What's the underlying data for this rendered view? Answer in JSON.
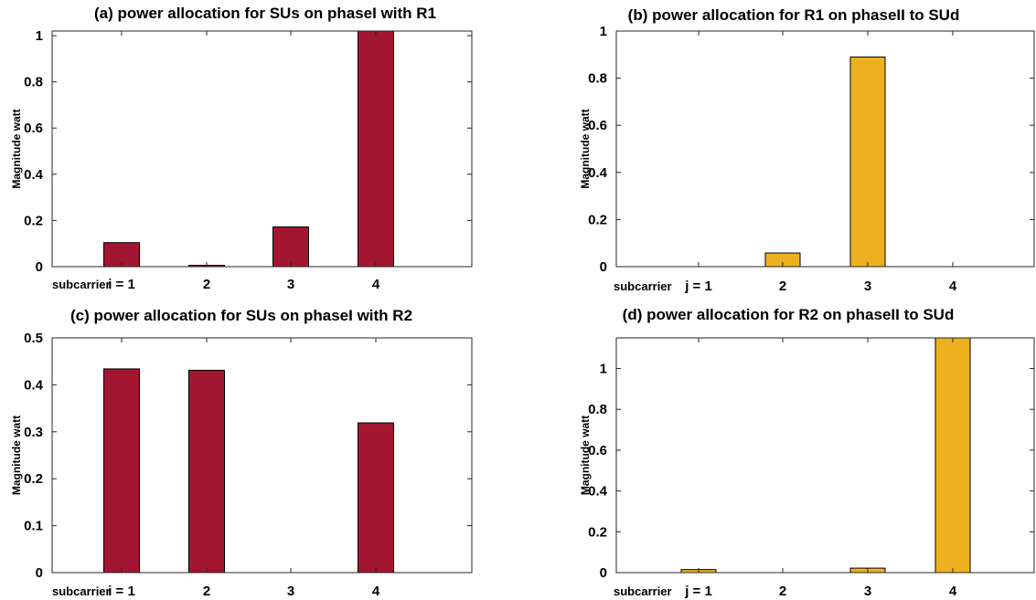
{
  "chart_data": [
    {
      "type": "bar",
      "title": "(a) power allocation for SUs on phaseI with R1",
      "ylabel": "Magnitude watt",
      "xlabel": "subcarrier",
      "categories": [
        "i = 1",
        "2",
        "3",
        "4"
      ],
      "values": [
        0.104,
        0.005,
        0.172,
        1.02
      ],
      "ylim": [
        0,
        1.02
      ],
      "yticks": [
        "0",
        "0.2",
        "0.4",
        "0.6",
        "0.8",
        "1"
      ],
      "bar_color": "#A31631"
    },
    {
      "type": "bar",
      "title": "(b) power allocation for R1 on phaseII to SUd",
      "ylabel": "Magnitude watt",
      "xlabel": "subcarrier",
      "categories": [
        "j = 1",
        "2",
        "3",
        "4"
      ],
      "values": [
        0,
        0.058,
        0.89,
        0
      ],
      "ylim": [
        0,
        1
      ],
      "yticks": [
        "0",
        "0.2",
        "0.4",
        "0.6",
        "0.8",
        "1"
      ],
      "bar_color": "#EDB120"
    },
    {
      "type": "bar",
      "title": "(c) power allocation for SUs on phaseI with R2",
      "ylabel": "Magnitude watt",
      "xlabel": "subcarrier",
      "categories": [
        "i = 1",
        "2",
        "3",
        "4"
      ],
      "values": [
        0.434,
        0.431,
        0,
        0.319
      ],
      "ylim": [
        0,
        0.5
      ],
      "yticks": [
        "0",
        "0.1",
        "0.2",
        "0.3",
        "0.4",
        "0.5"
      ],
      "bar_color": "#A31631"
    },
    {
      "type": "bar",
      "title": "(d) power allocation for R2 on phaseII to SUd",
      "ylabel": "Magnitude watt",
      "xlabel": "subcarrier",
      "categories": [
        "j = 1",
        "2",
        "3",
        "4"
      ],
      "values": [
        0.015,
        0,
        0.022,
        1.15
      ],
      "ylim": [
        0,
        1.15
      ],
      "yticks": [
        "0",
        "0.2",
        "0.4",
        "0.6",
        "0.8",
        "1"
      ],
      "bar_color": "#EDB120"
    }
  ]
}
